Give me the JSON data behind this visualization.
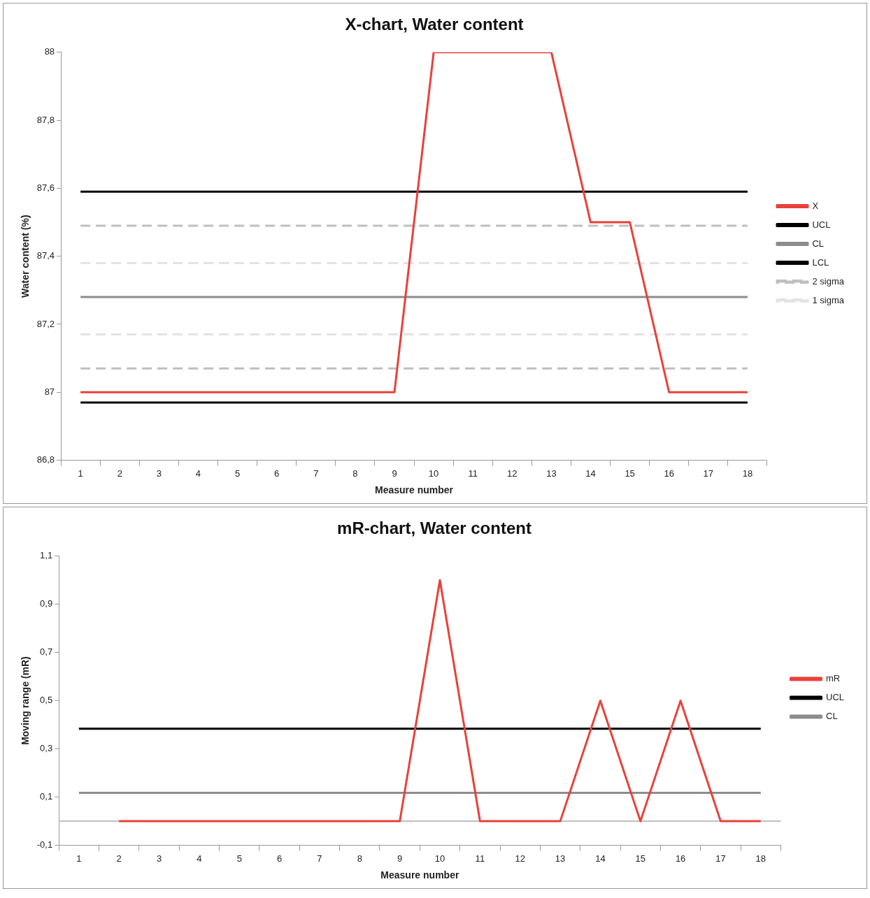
{
  "chart_data": [
    {
      "type": "line",
      "title": "X-chart, Water content",
      "xlabel": "Measure number",
      "ylabel": "Water content (%)",
      "x": [
        1,
        2,
        3,
        4,
        5,
        6,
        7,
        8,
        9,
        10,
        11,
        12,
        13,
        14,
        15,
        16,
        17,
        18
      ],
      "xlim": [
        0.5,
        18.5
      ],
      "xticks": [
        1,
        2,
        3,
        4,
        5,
        6,
        7,
        8,
        9,
        10,
        11,
        12,
        13,
        14,
        15,
        16,
        17,
        18,
        {
          "value": 0.5,
          "label": null
        },
        {
          "value": 1.5,
          "label": null
        },
        {
          "value": 2.5,
          "label": null
        },
        {
          "value": 3.5,
          "label": null
        },
        {
          "value": 4.5,
          "label": null
        },
        {
          "value": 5.5,
          "label": null
        },
        {
          "value": 6.5,
          "label": null
        },
        {
          "value": 7.5,
          "label": null
        },
        {
          "value": 8.5,
          "label": null
        },
        {
          "value": 9.5,
          "label": null
        },
        {
          "value": 10.5,
          "label": null
        },
        {
          "value": 11.5,
          "label": null
        },
        {
          "value": 12.5,
          "label": null
        },
        {
          "value": 13.5,
          "label": null
        },
        {
          "value": 14.5,
          "label": null
        },
        {
          "value": 15.5,
          "label": null
        },
        {
          "value": 16.5,
          "label": null
        },
        {
          "value": 17.5,
          "label": null
        },
        {
          "value": 18.5,
          "label": null
        }
      ],
      "series": [
        {
          "name": "X",
          "color": "#e8413a",
          "values": [
            87,
            87,
            87,
            87,
            87,
            87,
            87,
            87,
            87,
            88,
            88,
            88,
            88,
            87.5,
            87.5,
            87,
            87,
            87
          ]
        },
        {
          "name": "UCL",
          "color": "#000000",
          "values": [
            87.59,
            87.59,
            87.59,
            87.59,
            87.59,
            87.59,
            87.59,
            87.59,
            87.59,
            87.59,
            87.59,
            87.59,
            87.59,
            87.59,
            87.59,
            87.59,
            87.59,
            87.59
          ]
        },
        {
          "name": "CL",
          "color": "#8c8c8c",
          "values": [
            87.28,
            87.28,
            87.28,
            87.28,
            87.28,
            87.28,
            87.28,
            87.28,
            87.28,
            87.28,
            87.28,
            87.28,
            87.28,
            87.28,
            87.28,
            87.28,
            87.28,
            87.28
          ]
        },
        {
          "name": "LCL",
          "color": "#000000",
          "values": [
            86.97,
            86.97,
            86.97,
            86.97,
            86.97,
            86.97,
            86.97,
            86.97,
            86.97,
            86.97,
            86.97,
            86.97,
            86.97,
            86.97,
            86.97,
            86.97,
            86.97,
            86.97
          ]
        },
        {
          "name": "2 sigma",
          "color": "#bfbfbf",
          "line_style": "dashed",
          "values": [
            87.49,
            87.49,
            87.49,
            87.49,
            87.49,
            87.49,
            87.49,
            87.49,
            87.49,
            87.49,
            87.49,
            87.49,
            87.49,
            87.49,
            87.49,
            87.49,
            87.49,
            87.49
          ]
        },
        {
          "color": "#bfbfbf",
          "line_style": "dashed",
          "values": [
            87.07,
            87.07,
            87.07,
            87.07,
            87.07,
            87.07,
            87.07,
            87.07,
            87.07,
            87.07,
            87.07,
            87.07,
            87.07,
            87.07,
            87.07,
            87.07,
            87.07,
            87.07
          ]
        },
        {
          "name": "1 sigma",
          "color": "#e3e3e3",
          "line_style": "dashed",
          "values": [
            87.38,
            87.38,
            87.38,
            87.38,
            87.38,
            87.38,
            87.38,
            87.38,
            87.38,
            87.38,
            87.38,
            87.38,
            87.38,
            87.38,
            87.38,
            87.38,
            87.38,
            87.38
          ]
        },
        {
          "color": "#e3e3e3",
          "line_style": "dashed",
          "values": [
            87.17,
            87.17,
            87.17,
            87.17,
            87.17,
            87.17,
            87.17,
            87.17,
            87.17,
            87.17,
            87.17,
            87.17,
            87.17,
            87.17,
            87.17,
            87.17,
            87.17,
            87.17
          ]
        }
      ],
      "ylim": [
        86.8,
        88
      ],
      "yticks": [
        {
          "value": 86.8,
          "label": "86,8"
        },
        87,
        {
          "value": 87.2,
          "label": "87,2"
        },
        {
          "value": 87.4,
          "label": "87,4"
        },
        {
          "value": 87.6,
          "label": "87,6"
        },
        {
          "value": 87.8,
          "label": "87,8"
        },
        88
      ],
      "grid": false,
      "legend": "right",
      "marker": "none",
      "line_style": "solid"
    },
    {
      "type": "line",
      "title": "mR-chart, Water content",
      "xlabel": "Measure number",
      "ylabel": "Moving range (mR)",
      "x": [
        1,
        2,
        3,
        4,
        5,
        6,
        7,
        8,
        9,
        10,
        11,
        12,
        13,
        14,
        15,
        16,
        17,
        18
      ],
      "xlim": [
        0.5,
        18.5
      ],
      "xticks": [
        1,
        2,
        3,
        4,
        5,
        6,
        7,
        8,
        9,
        10,
        11,
        12,
        13,
        14,
        15,
        16,
        17,
        18,
        {
          "value": 0.5,
          "label": null
        },
        {
          "value": 1.5,
          "label": null
        },
        {
          "value": 2.5,
          "label": null
        },
        {
          "value": 3.5,
          "label": null
        },
        {
          "value": 4.5,
          "label": null
        },
        {
          "value": 5.5,
          "label": null
        },
        {
          "value": 6.5,
          "label": null
        },
        {
          "value": 7.5,
          "label": null
        },
        {
          "value": 8.5,
          "label": null
        },
        {
          "value": 9.5,
          "label": null
        },
        {
          "value": 10.5,
          "label": null
        },
        {
          "value": 11.5,
          "label": null
        },
        {
          "value": 12.5,
          "label": null
        },
        {
          "value": 13.5,
          "label": null
        },
        {
          "value": 14.5,
          "label": null
        },
        {
          "value": 15.5,
          "label": null
        },
        {
          "value": 16.5,
          "label": null
        },
        {
          "value": 17.5,
          "label": null
        },
        {
          "value": 18.5,
          "label": null
        }
      ],
      "series": [
        {
          "name": "mR",
          "color": "#e8413a",
          "values": [
            null,
            0,
            0,
            0,
            0,
            0,
            0,
            0,
            0,
            1,
            0,
            0,
            0,
            0.5,
            0,
            0.5,
            0,
            0
          ]
        },
        {
          "name": "UCL",
          "color": "#000000",
          "values": [
            0.384,
            0.384,
            0.384,
            0.384,
            0.384,
            0.384,
            0.384,
            0.384,
            0.384,
            0.384,
            0.384,
            0.384,
            0.384,
            0.384,
            0.384,
            0.384,
            0.384,
            0.384
          ]
        },
        {
          "name": "CL",
          "color": "#8c8c8c",
          "values": [
            0.118,
            0.118,
            0.118,
            0.118,
            0.118,
            0.118,
            0.118,
            0.118,
            0.118,
            0.118,
            0.118,
            0.118,
            0.118,
            0.118,
            0.118,
            0.118,
            0.118,
            0.118
          ]
        }
      ],
      "ylim": [
        -0.1,
        1.1
      ],
      "yticks": [
        {
          "value": -0.1,
          "label": "-0,1"
        },
        {
          "value": 0.1,
          "label": "0,1"
        },
        {
          "value": 0.3,
          "label": "0,3"
        },
        {
          "value": 0.5,
          "label": "0,5"
        },
        {
          "value": 0.7,
          "label": "0,7"
        },
        {
          "value": 0.9,
          "label": "0,9"
        },
        {
          "value": 1.1,
          "label": "1,1"
        }
      ],
      "ref_lines": [
        {
          "axis": "y",
          "value": 0,
          "color": "#bfbfbf"
        }
      ],
      "grid": false,
      "legend": "right",
      "marker": "none",
      "line_style": "solid"
    }
  ]
}
